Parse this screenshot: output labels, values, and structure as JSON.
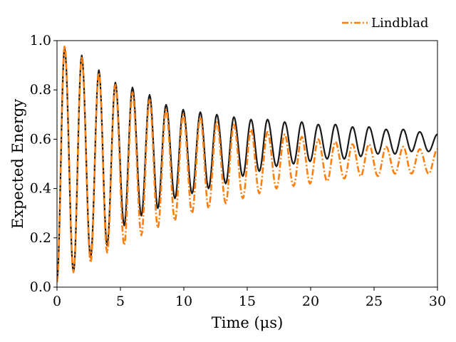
{
  "chart_data": {
    "type": "line",
    "xlabel": "Time (μs)",
    "ylabel": "Expected Energy",
    "xlim": [
      0,
      30
    ],
    "ylim": [
      0,
      1
    ],
    "xticks": [
      0,
      5,
      10,
      15,
      20,
      25,
      30
    ],
    "yticks": [
      0.0,
      0.2,
      0.4,
      0.6,
      0.8,
      1.0
    ],
    "xtick_labels": [
      "0",
      "5",
      "10",
      "15",
      "20",
      "25",
      "30"
    ],
    "ytick_labels": [
      "0.0",
      "0.2",
      "0.4",
      "0.6",
      "0.8",
      "1.0"
    ],
    "grid": false,
    "legend_placement": "above-right",
    "series": [
      {
        "name": "Lindblad",
        "style": "dash-dot",
        "color": "#ff7f0e",
        "period_us": 1.35,
        "points": [
          [
            0.0,
            0.02
          ],
          [
            0.6,
            0.98
          ],
          [
            1.3,
            0.06
          ],
          [
            1.95,
            0.93
          ],
          [
            2.65,
            0.1
          ],
          [
            3.3,
            0.87
          ],
          [
            3.95,
            0.14
          ],
          [
            4.6,
            0.82
          ],
          [
            5.3,
            0.17
          ],
          [
            5.95,
            0.79
          ],
          [
            6.65,
            0.21
          ],
          [
            7.3,
            0.76
          ],
          [
            7.95,
            0.24
          ],
          [
            8.6,
            0.72
          ],
          [
            9.3,
            0.27
          ],
          [
            9.95,
            0.7
          ],
          [
            10.65,
            0.3
          ],
          [
            11.3,
            0.69
          ],
          [
            11.95,
            0.32
          ],
          [
            12.6,
            0.67
          ],
          [
            13.3,
            0.34
          ],
          [
            13.95,
            0.66
          ],
          [
            14.65,
            0.36
          ],
          [
            15.3,
            0.64
          ],
          [
            15.95,
            0.38
          ],
          [
            16.6,
            0.63
          ],
          [
            17.3,
            0.4
          ],
          [
            17.95,
            0.62
          ],
          [
            18.65,
            0.41
          ],
          [
            19.3,
            0.61
          ],
          [
            19.95,
            0.42
          ],
          [
            20.6,
            0.6
          ],
          [
            21.3,
            0.43
          ],
          [
            21.95,
            0.59
          ],
          [
            22.65,
            0.44
          ],
          [
            23.3,
            0.58
          ],
          [
            23.95,
            0.45
          ],
          [
            24.6,
            0.58
          ],
          [
            25.3,
            0.45
          ],
          [
            25.95,
            0.57
          ],
          [
            26.65,
            0.46
          ],
          [
            27.3,
            0.57
          ],
          [
            27.95,
            0.46
          ],
          [
            28.6,
            0.56
          ],
          [
            29.3,
            0.46
          ],
          [
            30.0,
            0.56
          ]
        ]
      },
      {
        "name": "",
        "style": "solid",
        "color": "#1a1a1a",
        "period_us": 1.35,
        "points": [
          [
            0.0,
            0.03
          ],
          [
            0.6,
            0.97
          ],
          [
            1.3,
            0.06
          ],
          [
            1.95,
            0.94
          ],
          [
            2.65,
            0.12
          ],
          [
            3.3,
            0.88
          ],
          [
            3.95,
            0.17
          ],
          [
            4.6,
            0.83
          ],
          [
            5.3,
            0.25
          ],
          [
            5.95,
            0.81
          ],
          [
            6.65,
            0.29
          ],
          [
            7.3,
            0.78
          ],
          [
            7.95,
            0.32
          ],
          [
            8.6,
            0.74
          ],
          [
            9.3,
            0.36
          ],
          [
            9.95,
            0.72
          ],
          [
            10.65,
            0.38
          ],
          [
            11.3,
            0.71
          ],
          [
            11.95,
            0.4
          ],
          [
            12.6,
            0.7
          ],
          [
            13.3,
            0.42
          ],
          [
            13.95,
            0.69
          ],
          [
            14.65,
            0.45
          ],
          [
            15.3,
            0.68
          ],
          [
            15.95,
            0.47
          ],
          [
            16.6,
            0.68
          ],
          [
            17.3,
            0.49
          ],
          [
            17.95,
            0.67
          ],
          [
            18.65,
            0.5
          ],
          [
            19.3,
            0.67
          ],
          [
            19.95,
            0.51
          ],
          [
            20.6,
            0.66
          ],
          [
            21.3,
            0.52
          ],
          [
            21.95,
            0.66
          ],
          [
            22.65,
            0.52
          ],
          [
            23.3,
            0.65
          ],
          [
            23.95,
            0.53
          ],
          [
            24.6,
            0.65
          ],
          [
            25.3,
            0.54
          ],
          [
            25.95,
            0.64
          ],
          [
            26.65,
            0.54
          ],
          [
            27.3,
            0.64
          ],
          [
            27.95,
            0.55
          ],
          [
            28.6,
            0.63
          ],
          [
            29.3,
            0.55
          ],
          [
            30.0,
            0.62
          ]
        ]
      }
    ]
  }
}
